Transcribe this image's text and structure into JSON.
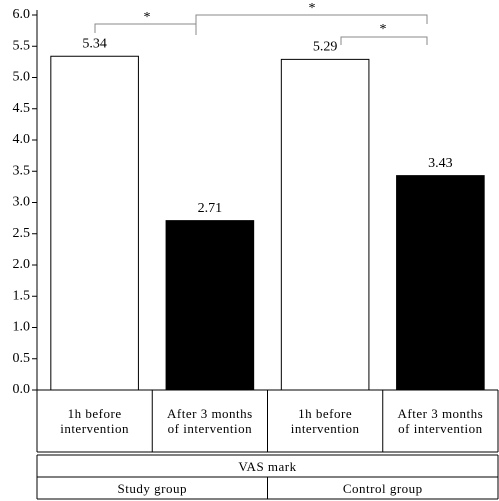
{
  "chart_data": {
    "type": "bar",
    "categories": [
      "1h before intervention",
      "After 3 months of intervention",
      "1h before intervention",
      "After 3 months of intervention"
    ],
    "values": [
      5.34,
      2.71,
      5.29,
      3.43
    ],
    "colors": [
      "#ffffff",
      "#000000",
      "#ffffff",
      "#000000"
    ],
    "groups": [
      "Study group",
      "Control group"
    ],
    "xlabel": "VAS mark",
    "annotations": [
      "*",
      "*",
      "*"
    ],
    "ylim": [
      0,
      6
    ],
    "yticks": [
      {
        "value": 0,
        "label": "0.0"
      },
      {
        "value": 0.5,
        "label": "0.5"
      },
      {
        "value": 1,
        "label": "1.0"
      },
      {
        "value": 1.5,
        "label": "1.5"
      },
      {
        "value": 2,
        "label": "2.0"
      },
      {
        "value": 2.5,
        "label": "2.5"
      },
      {
        "value": 3,
        "label": "3.0"
      },
      {
        "value": 3.5,
        "label": "3.5"
      },
      {
        "value": 4,
        "label": "4.0"
      },
      {
        "value": 4.5,
        "label": "4.5"
      },
      {
        "value": 5,
        "label": "5.0"
      },
      {
        "value": 5.5,
        "label": "5.5"
      },
      {
        "value": 6,
        "label": "6.0"
      }
    ]
  }
}
